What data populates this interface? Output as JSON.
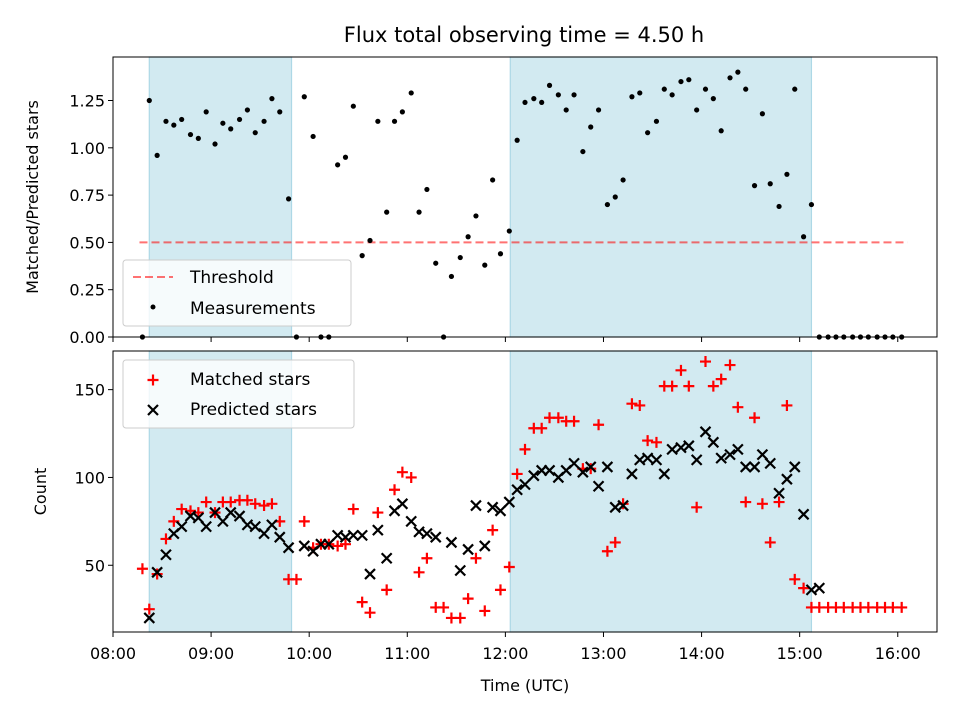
{
  "title": "Flux total observing time = 4.50 h",
  "colors": {
    "band": "#add8e6",
    "threshold": "#ff0000",
    "measurement": "#000000",
    "matched": "#ff0000",
    "predicted": "#000000"
  },
  "chart_data": [
    {
      "type": "scatter",
      "id": "top",
      "ylabel": "Matched/Predicted stars",
      "xlim": [
        8.0,
        16.4
      ],
      "ylim": [
        0,
        1.48
      ],
      "yticks": [
        0.0,
        0.25,
        0.5,
        0.75,
        1.0,
        1.25
      ],
      "ytick_labels": [
        "0.00",
        "0.25",
        "0.50",
        "0.75",
        "1.00",
        "1.25"
      ],
      "bands": [
        [
          8.37,
          9.82
        ],
        [
          12.05,
          15.12
        ]
      ],
      "threshold": {
        "label": "Threshold",
        "value": 0.5,
        "x": [
          8.27,
          16.1
        ]
      },
      "legend": [
        "Threshold",
        "Measurements"
      ],
      "measurements": {
        "label": "Measurements",
        "x": [
          8.3,
          8.37,
          8.45,
          8.54,
          8.62,
          8.7,
          8.79,
          8.87,
          8.95,
          9.04,
          9.12,
          9.2,
          9.29,
          9.37,
          9.45,
          9.54,
          9.62,
          9.7,
          9.79,
          9.87,
          9.95,
          10.04,
          10.12,
          10.2,
          10.29,
          10.37,
          10.45,
          10.54,
          10.62,
          10.7,
          10.79,
          10.87,
          10.95,
          11.04,
          11.12,
          11.2,
          11.29,
          11.37,
          11.45,
          11.54,
          11.62,
          11.7,
          11.79,
          11.87,
          11.95,
          12.04,
          12.12,
          12.2,
          12.29,
          12.37,
          12.45,
          12.54,
          12.62,
          12.7,
          12.79,
          12.87,
          12.95,
          13.04,
          13.12,
          13.2,
          13.29,
          13.37,
          13.45,
          13.54,
          13.62,
          13.7,
          13.79,
          13.87,
          13.95,
          14.04,
          14.12,
          14.2,
          14.29,
          14.37,
          14.45,
          14.54,
          14.62,
          14.7,
          14.79,
          14.87,
          14.95,
          15.04,
          15.12,
          15.2,
          15.29,
          15.37,
          15.45,
          15.54,
          15.62,
          15.7,
          15.79,
          15.87,
          15.95,
          16.04
        ],
        "y": [
          0.0,
          1.25,
          0.96,
          1.14,
          1.12,
          1.15,
          1.07,
          1.05,
          1.19,
          1.02,
          1.13,
          1.1,
          1.15,
          1.2,
          1.08,
          1.14,
          1.26,
          1.19,
          0.73,
          0.0,
          1.27,
          1.06,
          0.0,
          0.0,
          0.91,
          0.95,
          1.22,
          0.43,
          0.51,
          1.14,
          0.66,
          1.14,
          1.19,
          1.29,
          0.66,
          0.78,
          0.39,
          0.0,
          0.32,
          0.42,
          0.53,
          0.64,
          0.38,
          0.83,
          0.44,
          0.56,
          1.04,
          1.24,
          1.26,
          1.24,
          1.33,
          1.28,
          1.2,
          1.28,
          0.98,
          1.11,
          1.2,
          0.7,
          0.74,
          0.83,
          1.27,
          1.29,
          1.08,
          1.14,
          1.31,
          1.28,
          1.35,
          1.36,
          1.2,
          1.31,
          1.26,
          1.09,
          1.37,
          1.4,
          1.31,
          0.8,
          1.18,
          0.81,
          0.69,
          0.86,
          1.31,
          0.53,
          0.7,
          0.0,
          0.0,
          0.0,
          0.0,
          0.0,
          0.0,
          0.0,
          0.0,
          0.0,
          0.0,
          0.0
        ]
      }
    },
    {
      "type": "scatter",
      "id": "bottom",
      "ylabel": "Count",
      "xlabel": "Time (UTC)",
      "xlim": [
        8.0,
        16.4
      ],
      "ylim": [
        12,
        172
      ],
      "yticks": [
        50,
        100,
        150
      ],
      "ytick_labels": [
        "50",
        "100",
        "150"
      ],
      "xticks": [
        8,
        9,
        10,
        11,
        12,
        13,
        14,
        15,
        16
      ],
      "xtick_labels": [
        "08:00",
        "09:00",
        "10:00",
        "11:00",
        "12:00",
        "13:00",
        "14:00",
        "15:00",
        "16:00"
      ],
      "bands": [
        [
          8.37,
          9.82
        ],
        [
          12.05,
          15.12
        ]
      ],
      "legend": [
        "Matched stars",
        "Predicted stars"
      ],
      "series": [
        {
          "name": "Matched stars",
          "marker": "plus",
          "x": [
            8.3,
            8.37,
            8.45,
            8.54,
            8.62,
            8.7,
            8.79,
            8.87,
            8.95,
            9.04,
            9.12,
            9.2,
            9.29,
            9.37,
            9.45,
            9.54,
            9.62,
            9.7,
            9.79,
            9.87,
            9.95,
            10.04,
            10.12,
            10.2,
            10.29,
            10.37,
            10.45,
            10.54,
            10.62,
            10.7,
            10.79,
            10.87,
            10.95,
            11.04,
            11.12,
            11.2,
            11.29,
            11.37,
            11.45,
            11.54,
            11.62,
            11.7,
            11.79,
            11.87,
            11.95,
            12.04,
            12.12,
            12.2,
            12.29,
            12.37,
            12.45,
            12.54,
            12.62,
            12.7,
            12.79,
            12.87,
            12.95,
            13.04,
            13.12,
            13.2,
            13.29,
            13.37,
            13.45,
            13.54,
            13.62,
            13.7,
            13.79,
            13.87,
            13.95,
            14.04,
            14.12,
            14.2,
            14.29,
            14.37,
            14.45,
            14.54,
            14.62,
            14.7,
            14.79,
            14.87,
            14.95,
            15.04,
            15.12,
            15.2,
            15.29,
            15.37,
            15.45,
            15.54,
            15.62,
            15.7,
            15.79,
            15.87,
            15.95,
            16.04
          ],
          "y": [
            48,
            25,
            45,
            65,
            75,
            82,
            81,
            80,
            86,
            80,
            86,
            86,
            87,
            87,
            85,
            84,
            85,
            75,
            42,
            42,
            75,
            60,
            62,
            62,
            61,
            62,
            82,
            29,
            23,
            80,
            36,
            93,
            103,
            100,
            46,
            54,
            26,
            26,
            20,
            20,
            31,
            54,
            24,
            70,
            36,
            49,
            102,
            116,
            128,
            128,
            134,
            134,
            132,
            132,
            105,
            105,
            130,
            58,
            63,
            85,
            142,
            141,
            121,
            120,
            152,
            152,
            161,
            152,
            83,
            166,
            152,
            156,
            164,
            140,
            86,
            134,
            85,
            63,
            86,
            141,
            42,
            37,
            26,
            26,
            26,
            26,
            26,
            26,
            26,
            26,
            26,
            26,
            26,
            26
          ]
        },
        {
          "name": "Predicted stars",
          "marker": "x",
          "x": [
            8.45,
            8.54,
            8.62,
            8.7,
            8.79,
            8.87,
            8.95,
            9.04,
            9.12,
            9.2,
            9.29,
            9.37,
            9.45,
            9.54,
            9.62,
            9.7,
            9.79,
            9.95,
            10.04,
            10.12,
            10.2,
            10.29,
            10.37,
            10.45,
            10.54,
            10.62,
            10.7,
            10.79,
            10.87,
            10.95,
            11.04,
            11.12,
            11.2,
            11.29,
            11.45,
            11.54,
            11.62,
            11.7,
            11.79,
            11.87,
            11.95,
            12.04,
            12.12,
            12.2,
            12.29,
            12.37,
            12.45,
            12.54,
            12.62,
            12.7,
            12.79,
            12.87,
            12.95,
            13.04,
            13.12,
            13.2,
            13.29,
            13.37,
            13.45,
            13.54,
            13.62,
            13.7,
            13.79,
            13.87,
            13.95,
            14.04,
            14.12,
            14.2,
            14.29,
            14.37,
            14.45,
            14.54,
            14.62,
            14.7,
            14.79,
            14.87,
            14.95,
            15.04,
            15.12,
            15.2,
            8.37
          ],
          "y": [
            46,
            56,
            68,
            72,
            78,
            77,
            72,
            80,
            75,
            80,
            78,
            73,
            72,
            68,
            73,
            66,
            60,
            61,
            58,
            62,
            62,
            67,
            66,
            67,
            67,
            45,
            70,
            54,
            81,
            85,
            75,
            69,
            68,
            66,
            63,
            47,
            59,
            84,
            61,
            83,
            81,
            86,
            93,
            96,
            101,
            104,
            104,
            100,
            104,
            108,
            103,
            106,
            95,
            106,
            83,
            84,
            102,
            110,
            111,
            110,
            102,
            116,
            117,
            118,
            110,
            126,
            120,
            111,
            113,
            116,
            106,
            106,
            113,
            108,
            91,
            99,
            106,
            79,
            36,
            37,
            20
          ]
        }
      ]
    }
  ]
}
